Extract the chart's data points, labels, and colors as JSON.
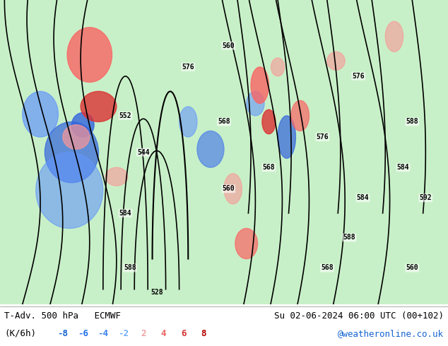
{
  "title_left": "T-Adv. 500 hPa   ECMWF",
  "title_right": "Su 02-06-2024 06:00 UTC (00+102)",
  "subtitle_left": "(K/6h)",
  "colorbar_values": [
    -8,
    -6,
    -4,
    -2,
    2,
    4,
    6,
    8
  ],
  "colorbar_colors_neg": [
    "#1464d2",
    "#1e6eeb",
    "#2882f0",
    "#5ab4f5"
  ],
  "colorbar_colors_pos": [
    "#f5a0a0",
    "#eb6464",
    "#d23232",
    "#b40000"
  ],
  "colorbar_text_neg_colors": [
    "#1464d2",
    "#1464d2",
    "#1464d2",
    "#1464d2"
  ],
  "colorbar_text_pos_colors": [
    "#c86464",
    "#c86464",
    "#c86464",
    "#c86464"
  ],
  "website": "@weatheronline.co.uk",
  "website_color": "#1464d2",
  "bg_color": "#c8f0c8",
  "map_bg": "#c8f0c8",
  "bottom_bar_color": "#f0f0f0",
  "figsize": [
    6.34,
    4.9
  ],
  "dpi": 100
}
